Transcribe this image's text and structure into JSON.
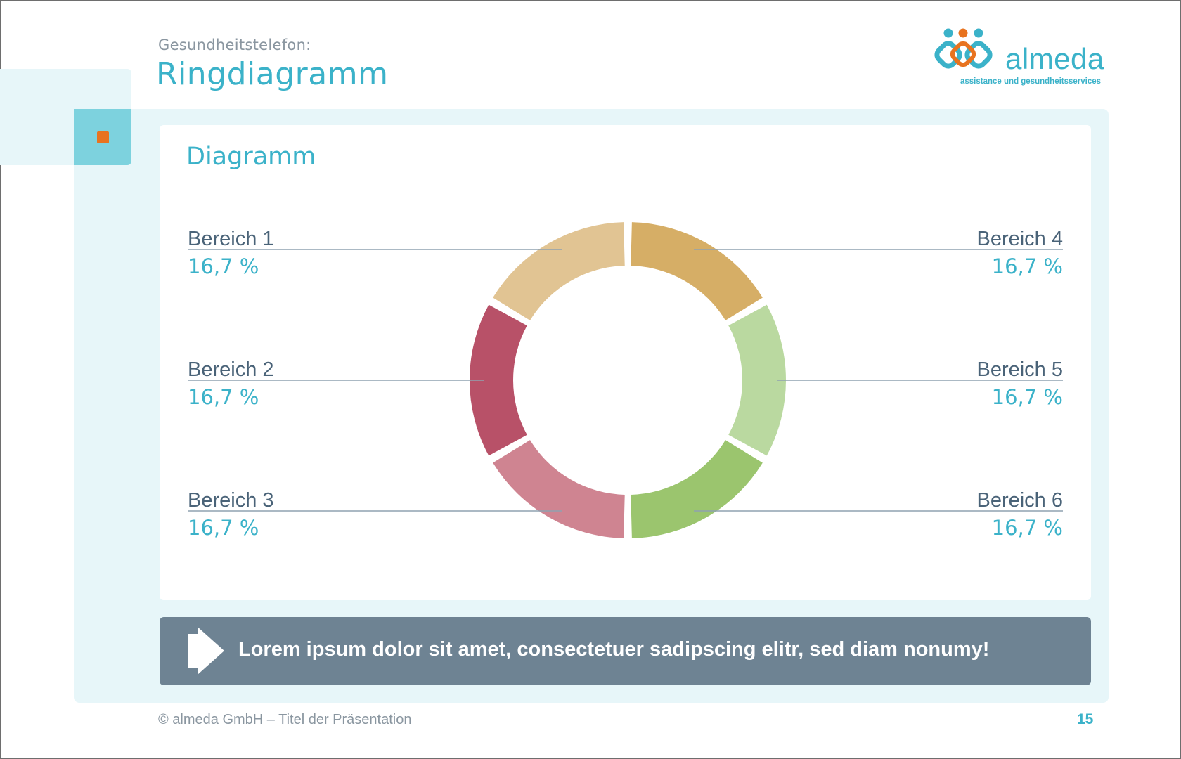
{
  "header": {
    "subtitle": "Gesundheitstelefon:",
    "title": "Ringdiagramm"
  },
  "logo": {
    "name": "almeda",
    "tagline": "assistance und gesundheitsservices",
    "icon": "almeda-people-logo-icon"
  },
  "card": {
    "title": "Diagramm"
  },
  "chart_data": {
    "type": "pie",
    "variant": "donut",
    "title": "",
    "categories": [
      "Bereich 1",
      "Bereich 2",
      "Bereich 3",
      "Bereich 4",
      "Bereich 5",
      "Bereich 6"
    ],
    "values": [
      16.7,
      16.7,
      16.7,
      16.7,
      16.7,
      16.7
    ],
    "value_labels": [
      "16,7 %",
      "16,7 %",
      "16,7 %",
      "16,7 %",
      "16,7 %",
      "16,7 %"
    ],
    "colors": [
      "#e1c493",
      "#b85168",
      "#cf8491",
      "#d6ae66",
      "#bad9a0",
      "#9bc56e"
    ],
    "legend": "callout labels left and right of ring"
  },
  "banner": {
    "text": "Lorem ipsum dolor sit amet, consectetuer sadipscing elitr, sed diam nonumy!",
    "icon": "arrow-right-icon"
  },
  "footer": {
    "left": "© almeda GmbH – Titel der Präsentation",
    "page": "15"
  },
  "colors": {
    "accent": "#3bb2c9",
    "orange": "#e8731f",
    "banner": "#6e8393",
    "light_bg": "#e7f6f9",
    "label_text": "#4a6378",
    "leader_line": "#8fa2b0"
  }
}
